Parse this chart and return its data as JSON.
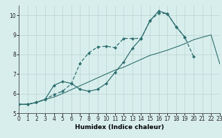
{
  "xlabel": "Humidex (Indice chaleur)",
  "xlim": [
    0,
    23
  ],
  "ylim": [
    5,
    10.5
  ],
  "bg_color": "#d8eeed",
  "grid_color": "#b8d4d0",
  "line_color": "#2d6e6e",
  "line1_x": [
    0,
    1,
    2,
    3,
    4,
    5,
    6,
    7,
    8,
    9,
    10,
    11,
    12,
    13,
    14,
    15,
    16,
    17,
    18,
    19,
    20,
    21,
    22,
    23
  ],
  "line1_y": [
    5.45,
    5.45,
    5.55,
    5.7,
    5.82,
    6.0,
    6.2,
    6.4,
    6.6,
    6.8,
    7.0,
    7.2,
    7.35,
    7.55,
    7.75,
    7.95,
    8.08,
    8.22,
    8.38,
    8.55,
    8.75,
    8.88,
    9.0,
    7.52
  ],
  "line2_x": [
    0,
    1,
    2,
    3,
    4,
    5,
    6,
    7,
    8,
    9,
    10,
    11,
    12,
    13,
    14,
    15,
    16,
    17,
    18,
    19,
    20
  ],
  "line2_y": [
    5.45,
    5.45,
    5.55,
    5.7,
    5.95,
    6.12,
    6.5,
    7.55,
    8.08,
    8.38,
    8.42,
    8.35,
    8.82,
    8.82,
    8.82,
    9.72,
    10.12,
    10.08,
    9.42,
    8.88,
    7.88
  ],
  "line3_x": [
    0,
    1,
    2,
    3,
    4,
    5,
    6,
    7,
    8,
    9,
    10,
    11,
    12,
    13,
    14,
    15,
    16,
    17,
    18,
    19
  ],
  "line3_y": [
    5.45,
    5.45,
    5.55,
    5.7,
    6.42,
    6.62,
    6.52,
    6.22,
    6.12,
    6.22,
    6.52,
    7.08,
    7.62,
    8.32,
    8.82,
    9.72,
    10.22,
    10.08,
    9.42,
    8.88
  ],
  "yticks": [
    5,
    6,
    7,
    8,
    9,
    10
  ],
  "xticks": [
    0,
    1,
    2,
    3,
    4,
    5,
    6,
    7,
    8,
    9,
    10,
    11,
    12,
    13,
    14,
    15,
    16,
    17,
    18,
    19,
    20,
    21,
    22,
    23
  ],
  "tick_fontsize": 5.5,
  "xlabel_fontsize": 6.5
}
